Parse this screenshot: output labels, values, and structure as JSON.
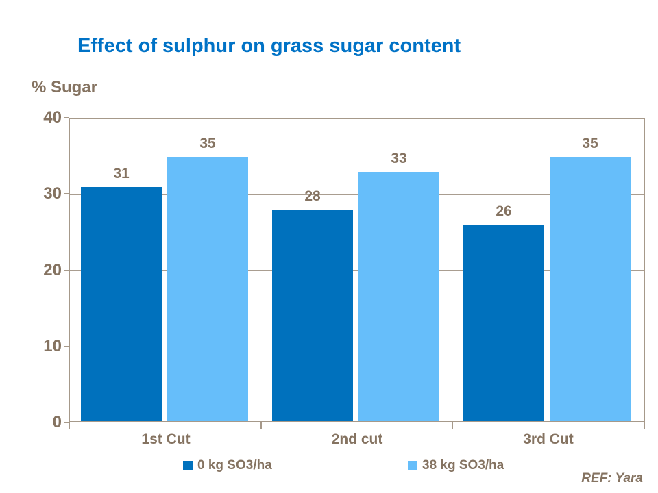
{
  "slide": {
    "title": "Effect of sulphur on grass sugar content",
    "y_axis_label": "% Sugar",
    "ref_note": "REF: Yara"
  },
  "colors": {
    "title_blue": "#0072C6",
    "series1_dark_blue": "#0071BD",
    "series2_light_blue": "#66BEFA",
    "text_brown": "#857361",
    "axis_tan": "#A6998A",
    "gridline_tan": "#A99D90"
  },
  "chart_data": {
    "type": "bar",
    "title": "Effect of sulphur on grass sugar content",
    "ylabel": "% Sugar",
    "xlabel": "",
    "categories": [
      "1st Cut",
      "2nd cut",
      "3rd Cut"
    ],
    "series": [
      {
        "name": "0 kg SO3/ha",
        "values": [
          31,
          28,
          26
        ],
        "color": "#0071BD"
      },
      {
        "name": "38 kg SO3/ha",
        "values": [
          35,
          33,
          35
        ],
        "color": "#66BEFA"
      }
    ],
    "ylim": [
      0,
      40
    ],
    "yticks": [
      0,
      10,
      20,
      30,
      40
    ],
    "grid": true,
    "data_labels": true,
    "legend_position": "bottom"
  }
}
